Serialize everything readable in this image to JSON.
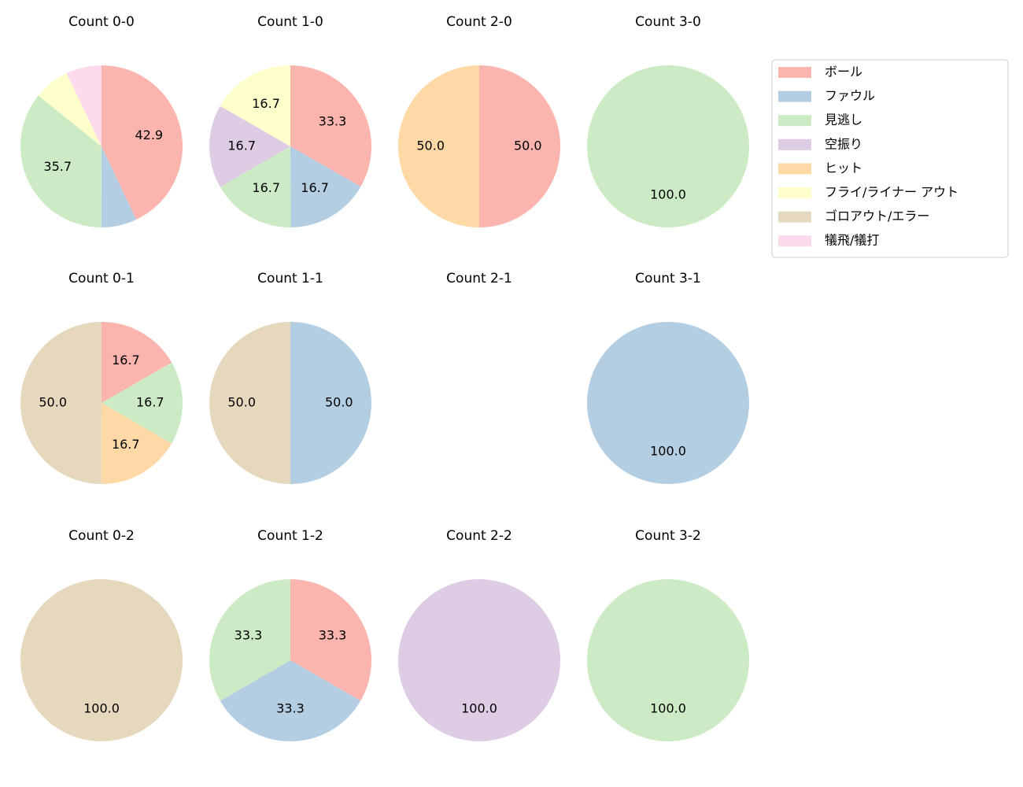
{
  "chart_data": [
    {
      "type": "pie",
      "title": "Count 0-0",
      "categories": [
        "ボール",
        "ファウル",
        "見逃し",
        "フライ/ライナー アウト",
        "犠飛/犠打"
      ],
      "values": [
        42.9,
        7.1,
        35.7,
        7.1,
        7.1
      ],
      "value_labels": [
        "42.9",
        null,
        "35.7",
        null,
        null
      ]
    },
    {
      "type": "pie",
      "title": "Count 1-0",
      "categories": [
        "ボール",
        "ファウル",
        "見逃し",
        "空振り",
        "フライ/ライナー アウト"
      ],
      "values": [
        33.3,
        16.7,
        16.7,
        16.7,
        16.7
      ],
      "value_labels": [
        "33.3",
        "16.7",
        "16.7",
        "16.7",
        "16.7"
      ]
    },
    {
      "type": "pie",
      "title": "Count 2-0",
      "categories": [
        "ボール",
        "ヒット"
      ],
      "values": [
        50,
        50
      ],
      "value_labels": [
        "50.0",
        "50.0"
      ]
    },
    {
      "type": "pie",
      "title": "Count 3-0",
      "categories": [
        "見逃し"
      ],
      "values": [
        100
      ],
      "value_labels": [
        "100.0"
      ]
    },
    {
      "type": "pie",
      "title": "Count 0-1",
      "categories": [
        "ボール",
        "見逃し",
        "ヒット",
        "ゴロアウト/エラー"
      ],
      "values": [
        16.7,
        16.7,
        16.7,
        50
      ],
      "value_labels": [
        "16.7",
        "16.7",
        "16.7",
        "50.0"
      ]
    },
    {
      "type": "pie",
      "title": "Count 1-1",
      "categories": [
        "ファウル",
        "ゴロアウト/エラー"
      ],
      "values": [
        50,
        50
      ],
      "value_labels": [
        "50.0",
        "50.0"
      ]
    },
    {
      "type": "pie",
      "title": "Count 2-1",
      "categories": [],
      "values": [],
      "value_labels": []
    },
    {
      "type": "pie",
      "title": "Count 3-1",
      "categories": [
        "ファウル"
      ],
      "values": [
        100
      ],
      "value_labels": [
        "100.0"
      ]
    },
    {
      "type": "pie",
      "title": "Count 0-2",
      "categories": [
        "ゴロアウト/エラー"
      ],
      "values": [
        100
      ],
      "value_labels": [
        "100.0"
      ]
    },
    {
      "type": "pie",
      "title": "Count 1-2",
      "categories": [
        "ボール",
        "ファウル",
        "見逃し"
      ],
      "values": [
        33.3,
        33.3,
        33.3
      ],
      "value_labels": [
        "33.3",
        "33.3",
        "33.3"
      ]
    },
    {
      "type": "pie",
      "title": "Count 2-2",
      "categories": [
        "空振り"
      ],
      "values": [
        100
      ],
      "value_labels": [
        "100.0"
      ]
    },
    {
      "type": "pie",
      "title": "Count 3-2",
      "categories": [
        "見逃し"
      ],
      "values": [
        100
      ],
      "value_labels": [
        "100.0"
      ]
    }
  ],
  "legend": {
    "position": "upper right",
    "categories": [
      "ボール",
      "ファウル",
      "見逃し",
      "空振り",
      "ヒット",
      "フライ/ライナー アウト",
      "ゴロアウト/エラー",
      "犠飛/犠打"
    ],
    "colors": [
      "#fbb4ae",
      "#b3cde3",
      "#ccebc5",
      "#decbe4",
      "#fed9a6",
      "#ffffcc",
      "#e5d8bd",
      "#fddaec"
    ]
  }
}
